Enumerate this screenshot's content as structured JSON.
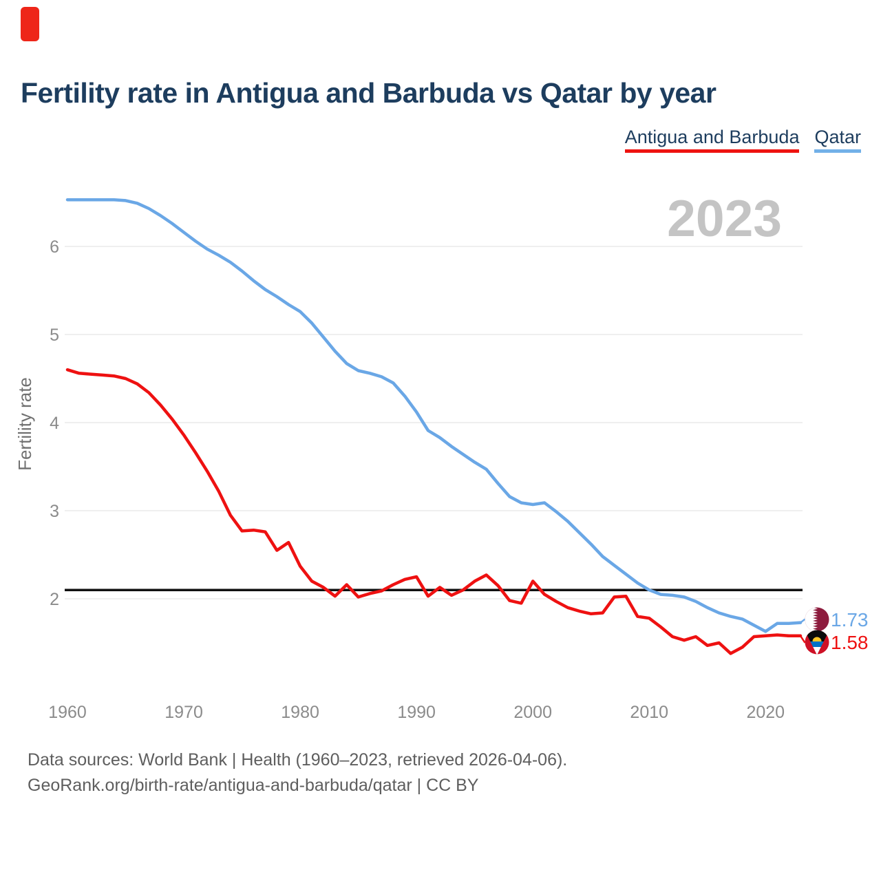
{
  "brand": {
    "color": "#ee2619"
  },
  "header": {
    "title": "Fertility rate in Antigua and Barbuda vs Qatar by year"
  },
  "legend": {
    "items": [
      {
        "label": "Antigua and Barbuda",
        "color": "#ee1310"
      },
      {
        "label": "Qatar",
        "color": "#72b0e8"
      }
    ]
  },
  "watermark": "2023",
  "footer": {
    "line1": "Data sources: World Bank | Health (1960–2023, retrieved 2026-04-06).",
    "line2": "GeoRank.org/birth-rate/antigua-and-barbuda/qatar | CC BY"
  },
  "chart_data": {
    "type": "line",
    "title": "Fertility rate in Antigua and Barbuda vs Qatar by year",
    "xlabel": "",
    "ylabel": "Fertility rate",
    "xlim": [
      1960,
      2023
    ],
    "ylim": [
      1.3,
      6.6
    ],
    "x_ticks": [
      1960,
      1970,
      1980,
      1990,
      2000,
      2010,
      2020
    ],
    "y_ticks": [
      2,
      3,
      4,
      5,
      6
    ],
    "grid": "horizontal",
    "legend_position": "top-right",
    "reference_line": {
      "value": 2.1,
      "color": "#111111",
      "meaning": "replacement fertility"
    },
    "colors": {
      "grid": "#eaeaea",
      "tick_label": "#8b8b8b",
      "axis_label": "#707070",
      "watermark": "#c4c4c4"
    },
    "series": [
      {
        "name": "Qatar",
        "slug": "qatar",
        "color": "#6aa7e6",
        "end_label": "1.73",
        "x_start": 1960,
        "values": [
          6.53,
          6.53,
          6.53,
          6.53,
          6.53,
          6.52,
          6.49,
          6.43,
          6.35,
          6.26,
          6.16,
          6.06,
          5.97,
          5.9,
          5.82,
          5.72,
          5.61,
          5.51,
          5.43,
          5.34,
          5.26,
          5.13,
          4.97,
          4.81,
          4.67,
          4.59,
          4.56,
          4.52,
          4.45,
          4.3,
          4.12,
          3.91,
          3.83,
          3.73,
          3.64,
          3.55,
          3.47,
          3.31,
          3.16,
          3.09,
          3.07,
          3.09,
          2.99,
          2.88,
          2.75,
          2.62,
          2.48,
          2.38,
          2.28,
          2.18,
          2.1,
          2.05,
          2.04,
          2.02,
          1.97,
          1.9,
          1.84,
          1.8,
          1.77,
          1.7,
          1.63,
          1.72,
          1.72,
          1.73
        ]
      },
      {
        "name": "Antigua and Barbuda",
        "slug": "antigua-and-barbuda",
        "color": "#ee1111",
        "end_label": "1.58",
        "x_start": 1960,
        "values": [
          4.6,
          4.56,
          4.55,
          4.54,
          4.53,
          4.5,
          4.44,
          4.34,
          4.2,
          4.04,
          3.86,
          3.66,
          3.45,
          3.22,
          2.95,
          2.77,
          2.78,
          2.76,
          2.55,
          2.64,
          2.37,
          2.2,
          2.13,
          2.03,
          2.16,
          2.02,
          2.06,
          2.09,
          2.16,
          2.22,
          2.25,
          2.03,
          2.13,
          2.04,
          2.1,
          2.2,
          2.27,
          2.15,
          1.98,
          1.95,
          2.2,
          2.05,
          1.97,
          1.9,
          1.86,
          1.83,
          1.84,
          2.02,
          2.03,
          1.8,
          1.78,
          1.68,
          1.57,
          1.53,
          1.57,
          1.47,
          1.5,
          1.38,
          1.45,
          1.57,
          1.58,
          1.59,
          1.58,
          1.58
        ]
      }
    ]
  }
}
